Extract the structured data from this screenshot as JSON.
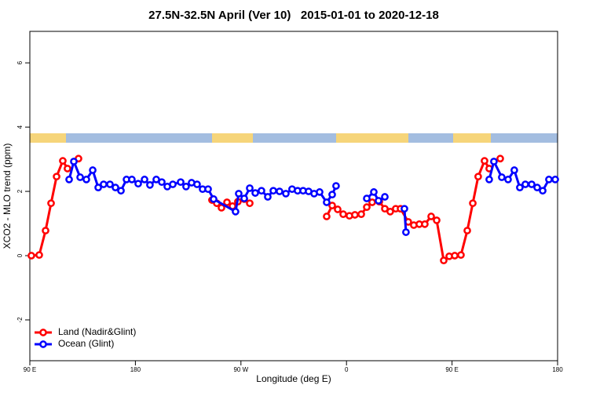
{
  "chart_data": {
    "type": "line",
    "title": "27.5N-32.5N April (Ver 10)   2015-01-01 to 2020-12-18",
    "x_label": "Longitude (deg E)",
    "y_label": "XCO2 - MLO trend (ppm)",
    "xlim": [
      90,
      540
    ],
    "xticks": [
      {
        "value": 90,
        "label": "90 E"
      },
      180,
      {
        "value": 270,
        "label": "90 W"
      },
      {
        "value": 360,
        "label": "0"
      },
      {
        "value": 450,
        "label": "90 E"
      },
      {
        "value": 540,
        "label": "180"
      }
    ],
    "ylim": [
      -3.27,
      6.98
    ],
    "yticks": [
      -2,
      0,
      2,
      4,
      6
    ],
    "legend": "bottom-left",
    "series": [
      {
        "name": "Land (Nadir&Glint)",
        "color": "#ff0000",
        "x": [
          91.3,
          98.0,
          103.4,
          108.1,
          112.8,
          118.1,
          122.1,
          null,
          131.5,
          null,
          245.3,
          249.4,
          253.4,
          258.1,
          262.8,
          267.4,
          272.8,
          277.5,
          null,
          343.1,
          347.8,
          352.5,
          357.2,
          362.5,
          367.2,
          372.6,
          377.3,
          381.9,
          388.0,
          392.7,
          397.3,
          402.0,
          406.1,
          412.7,
          417.4,
          422.1,
          426.8,
          432.2,
          436.9,
          442.9,
          447.6,
          452.3,
          457.6,
          463.0,
          467.7,
          472.3,
          477.7,
          481.7,
          null,
          491.1
        ],
        "values": [
          0.0,
          0.02,
          0.78,
          1.63,
          2.46,
          2.95,
          2.71,
          null,
          3.02,
          null,
          1.73,
          1.63,
          1.49,
          1.66,
          1.54,
          1.68,
          1.76,
          1.63,
          null,
          1.22,
          1.56,
          1.44,
          1.29,
          1.24,
          1.27,
          1.29,
          1.51,
          1.66,
          1.68,
          1.46,
          1.37,
          1.46,
          1.46,
          1.05,
          0.95,
          0.98,
          0.98,
          1.22,
          1.1,
          -0.15,
          -0.02,
          0.0,
          0.02,
          0.78,
          1.63,
          2.46,
          2.95,
          2.71,
          null,
          3.02
        ]
      },
      {
        "name": "Ocean (Glint)",
        "color": "#0000ff",
        "x": [
          123.5,
          127.5,
          132.9,
          138.2,
          143.6,
          148.3,
          152.9,
          158.3,
          163.0,
          167.7,
          172.4,
          177.0,
          182.4,
          187.8,
          192.4,
          197.8,
          202.5,
          207.2,
          211.9,
          218.6,
          223.2,
          227.9,
          232.6,
          237.3,
          242.0,
          246.7,
          265.4,
          268.1,
          272.8,
          277.5,
          282.2,
          287.5,
          292.9,
          297.6,
          302.9,
          308.3,
          313.6,
          318.3,
          323.0,
          327.7,
          332.4,
          337.1,
          343.1,
          347.8,
          351.1,
          null,
          377.3,
          383.3,
          387.3,
          392.7,
          null,
          409.4,
          410.7,
          null,
          481.7,
          485.7,
          492.4,
          497.8,
          503.1,
          507.8,
          512.5,
          517.9,
          522.6,
          527.3,
          532.6,
          538.0
        ],
        "values": [
          2.37,
          2.93,
          2.44,
          2.37,
          2.66,
          2.12,
          2.22,
          2.22,
          2.12,
          2.02,
          2.37,
          2.37,
          2.24,
          2.37,
          2.2,
          2.37,
          2.29,
          2.15,
          2.22,
          2.29,
          2.15,
          2.27,
          2.22,
          2.07,
          2.07,
          1.76,
          1.37,
          1.93,
          1.78,
          2.1,
          1.95,
          2.02,
          1.83,
          2.02,
          2.0,
          1.93,
          2.07,
          2.02,
          2.02,
          2.0,
          1.93,
          1.98,
          1.66,
          1.9,
          2.17,
          null,
          1.78,
          1.98,
          1.71,
          1.83,
          null,
          1.46,
          0.73,
          null,
          2.37,
          2.93,
          2.44,
          2.37,
          2.66,
          2.12,
          2.22,
          2.22,
          2.12,
          2.02,
          2.37,
          2.37
        ]
      }
    ]
  }
}
